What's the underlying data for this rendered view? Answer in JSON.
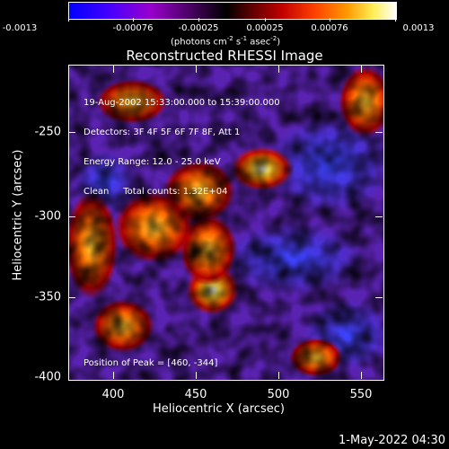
{
  "colorbar": {
    "ticks": [
      "-0.0013",
      "-0.00076",
      "-0.00025",
      "0.00025",
      "0.00076",
      "0.0013"
    ],
    "units_text": "(photons cm",
    "units_sup1": "-2",
    "units_mid": " s",
    "units_sup2": "-1",
    "units_end": " asec",
    "units_sup3": "-2",
    "units_close": ")"
  },
  "title": "Reconstructed RHESSI Image",
  "plot": {
    "info_lines": [
      "19-Aug-2002 15:33:00.000 to 15:39:00.000",
      "Detectors: 3F 4F 5F 6F 7F 8F, Att 1",
      "Energy Range: 12.0 - 25.0 keV",
      "Clean     Total counts: 1.32E+04"
    ],
    "peak_label": "Position of Peak = [460, -344]",
    "yticks": [
      "-250",
      "-300",
      "-350",
      "-400"
    ],
    "xticks": [
      "400",
      "450",
      "500",
      "550"
    ],
    "ylabel": "Heliocentric Y (arcsec)",
    "xlabel": "Heliocentric X (arcsec)"
  },
  "footer": "1-May-2022 04:30"
}
